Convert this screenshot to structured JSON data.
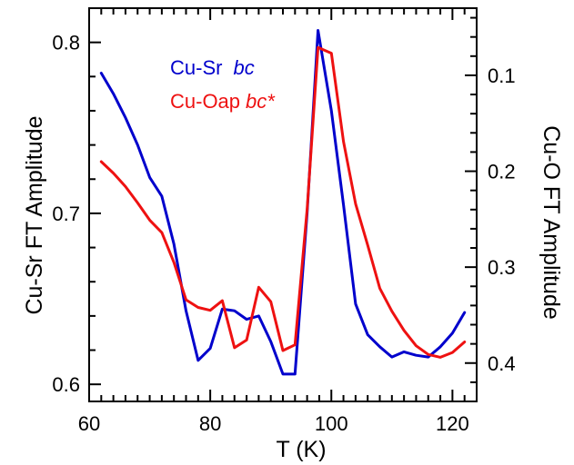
{
  "chart_data": {
    "type": "line",
    "xlabel": "T (K)",
    "ylabel_left": "Cu-Sr FT Amplitude",
    "ylabel_right": "Cu-O FT Amplitude",
    "xlim": [
      60,
      124
    ],
    "ylim_left": [
      0.59,
      0.82
    ],
    "ylim_right": [
      0.44,
      0.03
    ],
    "xticks": [
      60,
      80,
      100,
      120
    ],
    "xtick_labels": [
      "60",
      "80",
      "100",
      "120"
    ],
    "yticks_left": [
      0.6,
      0.7,
      0.8
    ],
    "ytick_labels_left": [
      "0.6",
      "0.7",
      "0.8"
    ],
    "yticks_right": [
      0.1,
      0.2,
      0.3,
      0.4
    ],
    "ytick_labels_right": [
      "0.1",
      "0.2",
      "0.3",
      "0.4"
    ],
    "grid": false,
    "legend_position": "top-left",
    "series": [
      {
        "name": "Cu-Sr",
        "name_suffix": "bc",
        "axis": "left",
        "color": "#0000cc",
        "points": [
          [
            62,
            0.782
          ],
          [
            64,
            0.77
          ],
          [
            66,
            0.756
          ],
          [
            68,
            0.74
          ],
          [
            70,
            0.721
          ],
          [
            72,
            0.71
          ],
          [
            74,
            0.682
          ],
          [
            76,
            0.643
          ],
          [
            78,
            0.614
          ],
          [
            80,
            0.621
          ],
          [
            82,
            0.644
          ],
          [
            84,
            0.643
          ],
          [
            86,
            0.638
          ],
          [
            88,
            0.64
          ],
          [
            90,
            0.625
          ],
          [
            92,
            0.606
          ],
          [
            94,
            0.606
          ],
          [
            96,
            0.7
          ],
          [
            97.8,
            0.807
          ],
          [
            100,
            0.76
          ],
          [
            102,
            0.705
          ],
          [
            104,
            0.647
          ],
          [
            106,
            0.629
          ],
          [
            108,
            0.622
          ],
          [
            110,
            0.616
          ],
          [
            112,
            0.619
          ],
          [
            114,
            0.617
          ],
          [
            116,
            0.616
          ],
          [
            118,
            0.622
          ],
          [
            120,
            0.63
          ],
          [
            122,
            0.642
          ]
        ]
      },
      {
        "name": "Cu-Oap",
        "name_suffix": "bc*",
        "axis": "right",
        "color": "#ee1111",
        "points": [
          [
            62,
            0.19
          ],
          [
            64,
            0.202
          ],
          [
            66,
            0.216
          ],
          [
            68,
            0.233
          ],
          [
            70,
            0.251
          ],
          [
            72,
            0.264
          ],
          [
            74,
            0.295
          ],
          [
            76,
            0.334
          ],
          [
            78,
            0.342
          ],
          [
            80,
            0.345
          ],
          [
            82,
            0.335
          ],
          [
            84,
            0.384
          ],
          [
            86,
            0.376
          ],
          [
            88,
            0.321
          ],
          [
            90,
            0.336
          ],
          [
            92,
            0.387
          ],
          [
            94,
            0.381
          ],
          [
            96,
            0.24
          ],
          [
            97.8,
            0.071
          ],
          [
            100,
            0.077
          ],
          [
            102,
            0.169
          ],
          [
            104,
            0.234
          ],
          [
            106,
            0.277
          ],
          [
            108,
            0.322
          ],
          [
            110,
            0.346
          ],
          [
            112,
            0.366
          ],
          [
            114,
            0.382
          ],
          [
            116,
            0.391
          ],
          [
            118,
            0.394
          ],
          [
            120,
            0.389
          ],
          [
            122,
            0.378
          ]
        ]
      }
    ]
  }
}
